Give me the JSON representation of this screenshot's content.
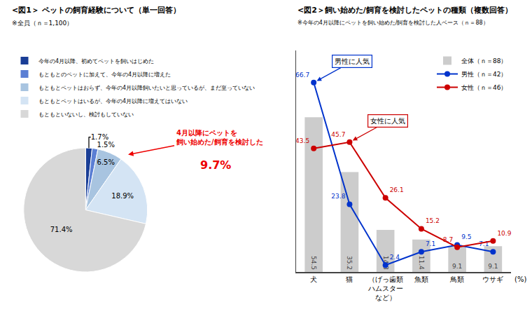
{
  "chart_data": [
    {
      "type": "pie",
      "title": "<図1＞ ペットの飼育経験について（単一回答）",
      "subtitle": "※全員（ｎ＝1,100）",
      "categories": [
        "今年の4月以降、初めてペットを飼いはじめた",
        "もともとのペットに加えて、今年の4月以降に増えた",
        "もともとペットはおらず、今年の4月以降飼いたいと思っているが、まだ至っていない",
        "もともとペットはいるが、今年の4月以降に増えてはいない",
        "もともといないし、検討もしていない"
      ],
      "values": [
        1.7,
        1.5,
        6.5,
        18.9,
        71.4
      ],
      "value_labels": [
        "1.7%",
        "1.5%",
        "6.5%",
        "18.9%",
        "71.4%"
      ],
      "colors": [
        "#1a3e96",
        "#5b7fd4",
        "#a8c4e0",
        "#d4e4f4",
        "#d8d8d8"
      ],
      "data_labels": true,
      "legend": "upper left",
      "annotations": [
        {
          "text": "4月以降にペットを\n飼い始めた/飼育を検討した",
          "color": "#ee0000"
        },
        {
          "text": "9.7%",
          "color": "#ee0000"
        }
      ]
    },
    {
      "type": "bar",
      "title": "<図2＞飼い始めた/飼育を検討したペットの種類（複数回答）",
      "subtitle": "※今年の4月以降にペットを飼い始めた/飼育を検討した人ベース（ｎ＝88）",
      "categories": [
        "犬",
        "猫",
        "（げっ歯類\nハムスター\nなど）",
        "魚類",
        "鳥類",
        "ウサギ"
      ],
      "series": [
        {
          "name": "全体（ｎ＝88）",
          "type": "bar",
          "color": "#cccccc",
          "values": [
            54.5,
            35.2,
            14.8,
            11.4,
            9.1,
            9.1
          ]
        },
        {
          "name": "男性（ｎ＝42）",
          "type": "line",
          "color": "#0033cc",
          "marker": "circle",
          "values": [
            66.7,
            23.8,
            2.4,
            7.1,
            9.5,
            7.1
          ]
        },
        {
          "name": "女性（ｎ＝46）",
          "type": "line",
          "color": "#cc0000",
          "marker": "circle",
          "values": [
            43.5,
            45.7,
            26.1,
            15.2,
            8.7,
            10.9
          ]
        }
      ],
      "ylim": [
        0,
        78
      ],
      "tick_labels": "x",
      "grid": false,
      "legend": "upper right",
      "data_labels": true,
      "annotations": [
        {
          "text": "男性に人気",
          "category": "犬",
          "series": "男性（ｎ＝42）"
        },
        {
          "text": "女性に人気",
          "category": "猫",
          "series": "女性（ｎ＝46）"
        },
        {
          "text": "(%)"
        }
      ]
    }
  ]
}
